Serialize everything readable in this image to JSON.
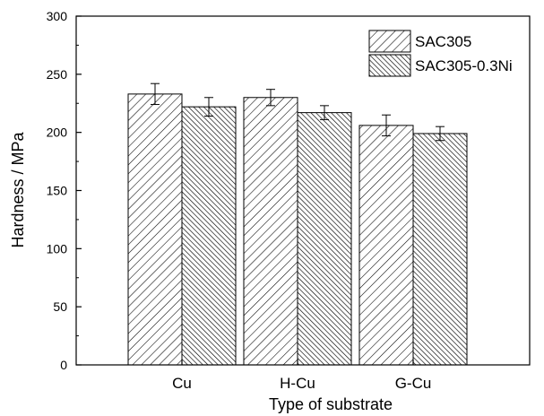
{
  "chart_data": {
    "type": "bar",
    "title": "",
    "xlabel": "Type of substrate",
    "ylabel": "Hardness / MPa",
    "categories": [
      "Cu",
      "H-Cu",
      "G-Cu"
    ],
    "ylim": [
      0,
      300
    ],
    "yticks": [
      0,
      50,
      100,
      150,
      200,
      250,
      300
    ],
    "grid": false,
    "legend_position": "top-right",
    "series": [
      {
        "name": "SAC305",
        "values": [
          233,
          230,
          206
        ],
        "errors": [
          9,
          7,
          9
        ],
        "pattern": "diagonal-hatch"
      },
      {
        "name": "SAC305-0.3Ni",
        "values": [
          222,
          217,
          199
        ],
        "errors": [
          8,
          6,
          6
        ],
        "pattern": "dense-diagonal-hatch"
      }
    ]
  }
}
